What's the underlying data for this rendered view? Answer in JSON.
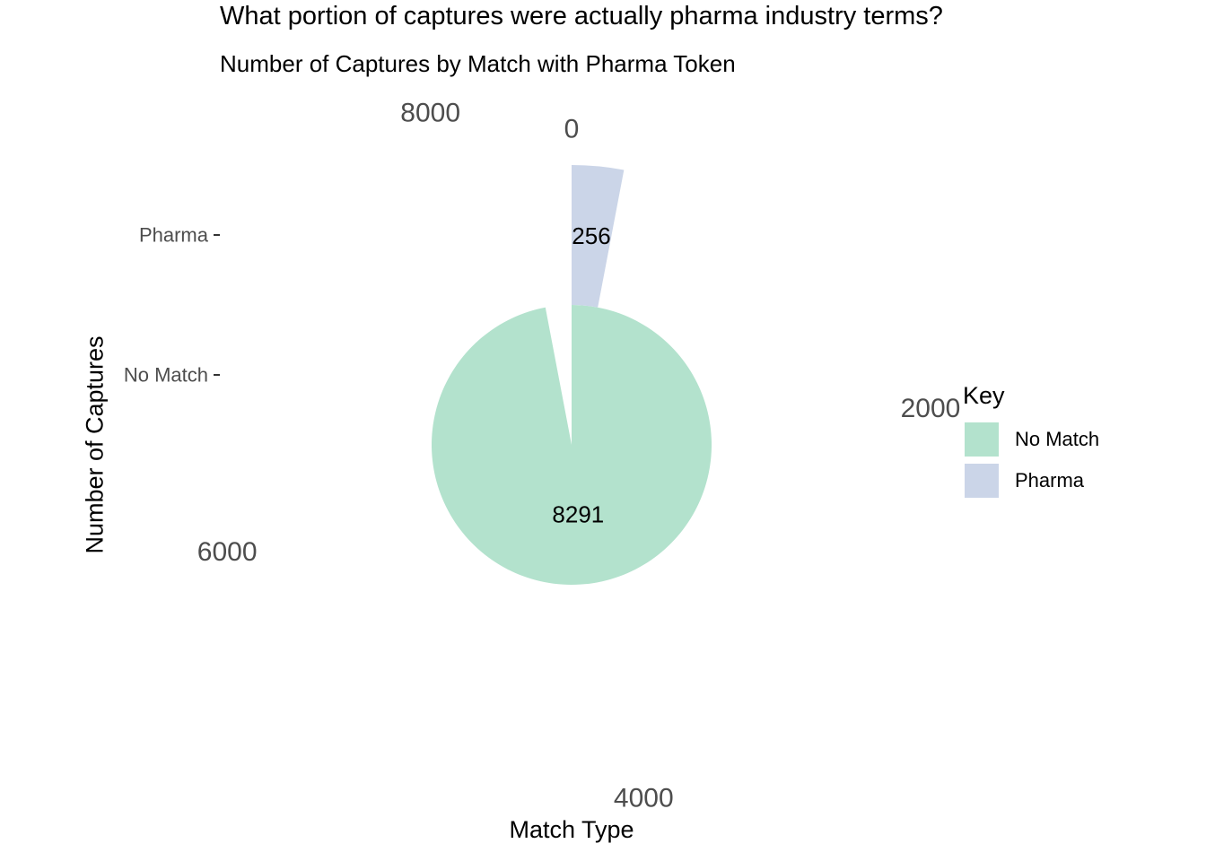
{
  "chart_data": {
    "type": "pie",
    "title": "What portion of captures were actually pharma industry terms?",
    "subtitle": "Number of Captures by Match with Pharma Token",
    "xlabel": "Match Type",
    "ylabel": "Number of Captures",
    "categories": [
      "No Match",
      "Pharma"
    ],
    "values": [
      8291,
      256
    ],
    "colors": [
      "#b3e2cd",
      "#cbd5e8"
    ],
    "theta_ticks": [
      0,
      2000,
      4000,
      6000,
      8000
    ],
    "theta_max": 8547,
    "radial_ticks": [
      "No Match",
      "Pharma"
    ],
    "legend": {
      "title": "Key",
      "placement": "right",
      "items": [
        "No Match",
        "Pharma"
      ]
    }
  }
}
